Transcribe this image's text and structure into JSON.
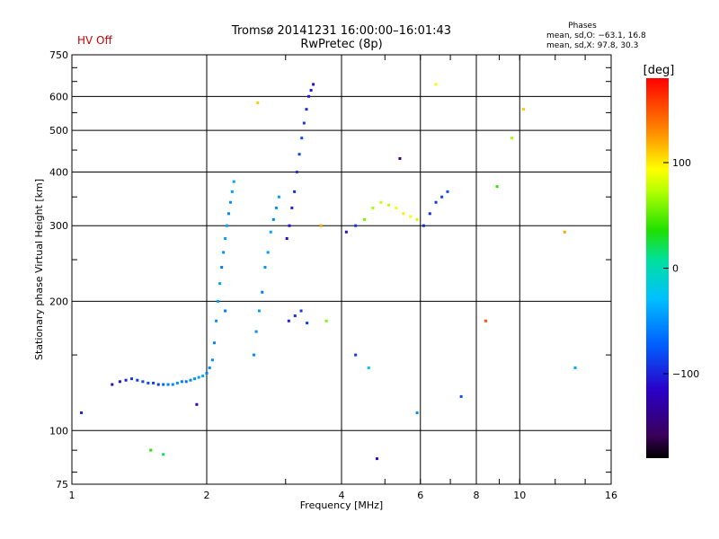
{
  "header": {
    "status": "HV Off",
    "status_color": "#cc0000",
    "title_line1": "Tromsø 20141231 16:00:00–16:01:43",
    "title_line2": "RwPretec (8p)",
    "phase_title": "Phases",
    "phase_o": "mean, sd,O: −63.1, 16.8",
    "phase_x": "mean, sd,X:  97.8, 30.3"
  },
  "colorbar": {
    "label": "[deg]",
    "ticks": [
      "100",
      "0",
      "−100"
    ],
    "tick_values": [
      100,
      0,
      -100
    ],
    "range": [
      -180,
      180
    ],
    "colormap": "rainbow"
  },
  "chart_data": {
    "type": "scatter",
    "xlabel": "Frequency [MHz]",
    "ylabel": "Stationary phase Virtual Height [km]",
    "x_scale": "log",
    "y_scale": "log",
    "xlim": [
      1,
      16
    ],
    "ylim": [
      75,
      750
    ],
    "x_ticks": [
      1,
      2,
      4,
      6,
      8,
      10,
      16
    ],
    "x_ticklabels": [
      "1",
      "2",
      "4",
      "6",
      "8",
      "10",
      "16"
    ],
    "y_ticks": [
      75,
      100,
      200,
      300,
      400,
      500,
      600,
      750
    ],
    "y_ticklabels": [
      "75",
      "100",
      "200",
      "300",
      "400",
      "500",
      "600",
      "750"
    ],
    "grid": true,
    "series": [
      {
        "x": [
          1.23,
          1.28,
          1.32,
          1.36,
          1.4,
          1.44,
          1.48,
          1.52,
          1.56,
          1.6,
          1.64,
          1.68,
          1.72,
          1.76,
          1.8,
          1.84,
          1.88,
          1.92,
          1.96,
          2.0,
          2.03,
          2.06
        ],
        "y": [
          128,
          130,
          131,
          132,
          131,
          130,
          129,
          129,
          128,
          128,
          128,
          128,
          129,
          130,
          130,
          131,
          132,
          133,
          134,
          136,
          140,
          146
        ],
        "phase": [
          -110,
          -105,
          -100,
          -95,
          -90,
          -85,
          -80,
          -85,
          -90,
          -70,
          -60,
          -55,
          -50,
          -60,
          -65,
          -55,
          -50,
          -45,
          -40,
          -60,
          -55,
          -50
        ]
      },
      {
        "x": [
          2.08,
          2.1,
          2.12,
          2.14,
          2.16,
          2.18,
          2.2,
          2.22,
          2.24,
          2.26,
          2.28,
          2.3
        ],
        "y": [
          160,
          180,
          200,
          220,
          240,
          260,
          280,
          300,
          320,
          340,
          360,
          380
        ],
        "phase": [
          -55,
          -50,
          -45,
          -40,
          -60,
          -50,
          -45,
          -40,
          -55,
          -50,
          -45,
          -40
        ]
      },
      {
        "x": [
          2.55,
          2.58,
          2.62,
          2.66,
          2.7,
          2.74,
          2.78,
          2.82,
          2.86,
          2.9
        ],
        "y": [
          150,
          170,
          190,
          210,
          240,
          260,
          290,
          310,
          330,
          350
        ],
        "phase": [
          -55,
          -50,
          -45,
          -60,
          -50,
          -45,
          -40,
          -55,
          -50,
          -45
        ]
      },
      {
        "x": [
          3.02,
          3.06,
          3.1,
          3.14,
          3.18,
          3.22,
          3.26,
          3.3,
          3.34,
          3.38,
          3.42,
          3.46
        ],
        "y": [
          280,
          300,
          330,
          360,
          400,
          440,
          480,
          520,
          560,
          600,
          620,
          640
        ],
        "phase": [
          -110,
          -105,
          -100,
          -95,
          -90,
          -85,
          -80,
          -90,
          -95,
          -100,
          -105,
          -110
        ]
      },
      {
        "x": [
          3.05,
          3.15,
          3.25,
          3.35
        ],
        "y": [
          180,
          185,
          190,
          178
        ],
        "phase": [
          -100,
          -95,
          -90,
          -85
        ]
      },
      {
        "x": [
          4.1,
          4.3,
          4.5,
          4.7,
          4.9,
          5.1,
          5.3,
          5.5,
          5.7,
          5.9,
          6.1,
          6.3,
          6.5,
          6.7,
          6.9
        ],
        "y": [
          290,
          300,
          310,
          330,
          340,
          335,
          330,
          320,
          315,
          310,
          300,
          320,
          340,
          350,
          360
        ],
        "phase": [
          -110,
          -90,
          60,
          70,
          80,
          75,
          90,
          100,
          95,
          80,
          -100,
          -95,
          -90,
          -85,
          -80
        ]
      },
      {
        "x": [
          1.05,
          1.5,
          1.6,
          1.9,
          2.2,
          2.6,
          3.6,
          3.7,
          4.3,
          4.6,
          4.8,
          5.4,
          5.9,
          6.5,
          7.4,
          8.4,
          8.9,
          9.6,
          10.2,
          12.6,
          13.3
        ],
        "y": [
          110,
          90,
          88,
          115,
          190,
          580,
          300,
          180,
          150,
          140,
          86,
          430,
          110,
          640,
          120,
          180,
          370,
          480,
          560,
          290,
          140
        ],
        "phase": [
          -100,
          40,
          20,
          -120,
          -60,
          110,
          120,
          60,
          -90,
          -30,
          -110,
          -140,
          -50,
          90,
          -80,
          150,
          40,
          70,
          110,
          120,
          -40
        ]
      }
    ]
  }
}
